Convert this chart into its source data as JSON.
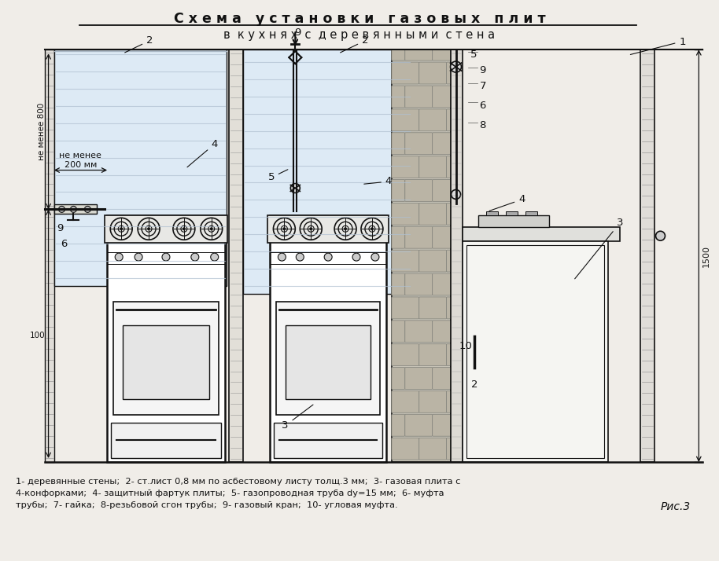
{
  "title_line1": "С х е м а   у с т а н о в к и   г а з о в ы х   п л и т",
  "title_line2": "в  к у х н я х  с  д е р е в я н н ы м и  с т е н а",
  "caption_line1": "1- деревянные стены;  2- ст.лист 0,8 мм по асбестовому листу толщ.3 мм;  3- газовая плита с",
  "caption_line2": "4-конфорками;  4- защитный фартук плиты;  5- газопроводная труба dy=15 мм;  6- муфта",
  "caption_line3": "трубы;  7- гайка;  8-резьбовой сгон трубы;  9- газовый кран;  10- угловая муфта.",
  "fig_label": "Рис.3",
  "bg_color": "#f0ede8",
  "panel_fill": "#ddeaf5",
  "stove_fill": "#ffffff",
  "line_color": "#111111",
  "text_color": "#111111",
  "wall_hatch_color": "#999999",
  "brick_fill": "#c8c4b8",
  "brick_line": "#888880"
}
